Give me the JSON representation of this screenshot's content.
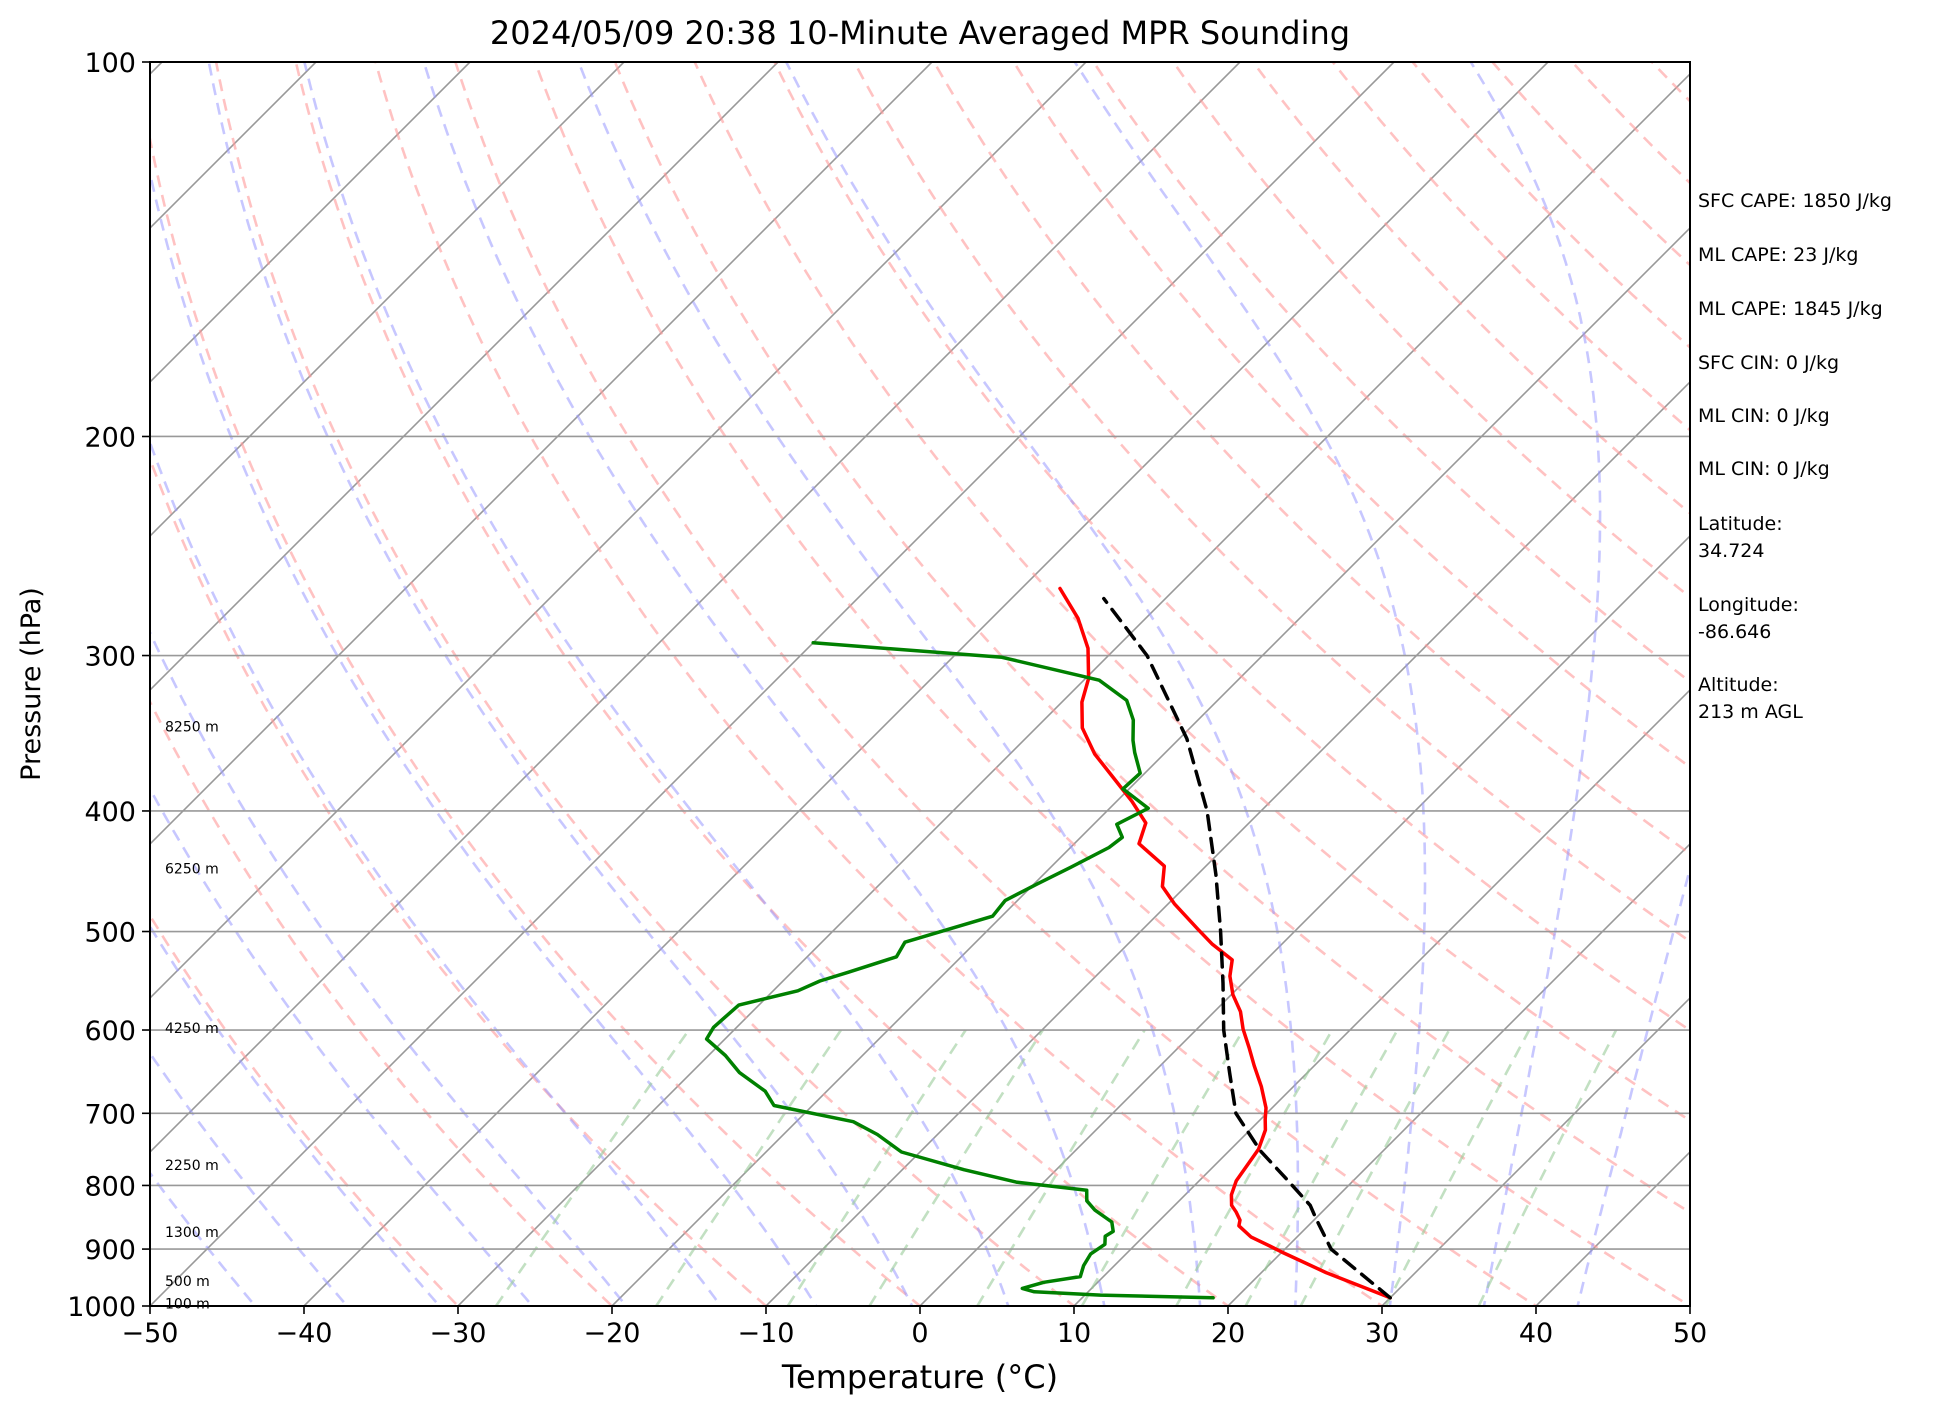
{
  "chart_data": {
    "type": "line",
    "subtype": "skew-t log-p sounding",
    "title": "2024/05/09 20:38 10-Minute Averaged MPR Sounding",
    "xlabel": "Temperature (°C)",
    "ylabel": "Pressure (hPa)",
    "xlim": [
      -50,
      50
    ],
    "ylim": [
      1000,
      100
    ],
    "y_scale": "log",
    "x_ticks": [
      "−50",
      "−40",
      "−30",
      "−20",
      "−10",
      "0",
      "10",
      "20",
      "30",
      "40",
      "50"
    ],
    "y_ticks": [
      "100",
      "200",
      "300",
      "400",
      "500",
      "600",
      "700",
      "800",
      "900",
      "1000"
    ],
    "grid": "horizontal at pressure ticks",
    "height_labels": [
      {
        "p": 342,
        "label": "8250 m"
      },
      {
        "p": 445,
        "label": "6250 m"
      },
      {
        "p": 598,
        "label": "4250 m"
      },
      {
        "p": 770,
        "label": "2250 m"
      },
      {
        "p": 872,
        "label": "1300 m"
      },
      {
        "p": 955,
        "label": "500 m"
      },
      {
        "p": 995,
        "label": "100 m"
      }
    ],
    "series": [
      {
        "role": "temperature",
        "color": "#ff0000",
        "points": [
          [
            30.0,
            985
          ],
          [
            24.2,
            940
          ],
          [
            20.0,
            905
          ],
          [
            18.6,
            893
          ],
          [
            17.0,
            880
          ],
          [
            15.5,
            862
          ],
          [
            15.2,
            853
          ],
          [
            14.4,
            840
          ],
          [
            13.7,
            830
          ],
          [
            13.0,
            814
          ],
          [
            12.4,
            793
          ],
          [
            11.8,
            748
          ],
          [
            11.0,
            722
          ],
          [
            10.3,
            708
          ],
          [
            9.6,
            693
          ],
          [
            7.9,
            666
          ],
          [
            6.1,
            641
          ],
          [
            4.6,
            620
          ],
          [
            3.0,
            599
          ],
          [
            1.7,
            580
          ],
          [
            0.1,
            562
          ],
          [
            -1.3,
            543
          ],
          [
            -2.2,
            527
          ],
          [
            -4.5,
            512
          ],
          [
            -6.4,
            498
          ],
          [
            -9.6,
            475
          ],
          [
            -11.5,
            460
          ],
          [
            -12.7,
            443
          ],
          [
            -15.8,
            425
          ],
          [
            -16.7,
            409
          ],
          [
            -19.0,
            393
          ],
          [
            -21.6,
            377
          ],
          [
            -24.5,
            360
          ],
          [
            -27.0,
            343
          ],
          [
            -28.7,
            327
          ],
          [
            -29.8,
            313
          ],
          [
            -31.8,
            296
          ],
          [
            -34.4,
            280
          ],
          [
            -37.5,
            265
          ]
        ]
      },
      {
        "role": "dewpoint",
        "color": "#008000",
        "points": [
          [
            18.5,
            985
          ],
          [
            11.0,
            980
          ],
          [
            6.5,
            974
          ],
          [
            5.5,
            968
          ],
          [
            6.5,
            957
          ],
          [
            8.5,
            947
          ],
          [
            8.0,
            928
          ],
          [
            7.7,
            908
          ],
          [
            8.0,
            892
          ],
          [
            7.5,
            879
          ],
          [
            7.7,
            871
          ],
          [
            7.0,
            856
          ],
          [
            5.1,
            837
          ],
          [
            4.0,
            823
          ],
          [
            3.3,
            807
          ],
          [
            -1.8,
            795
          ],
          [
            -6.0,
            777
          ],
          [
            -11.2,
            752
          ],
          [
            -13.9,
            728
          ],
          [
            -16.3,
            711
          ],
          [
            -22.5,
            690
          ],
          [
            -24.0,
            672
          ],
          [
            -26.9,
            649
          ],
          [
            -28.9,
            629
          ],
          [
            -31.2,
            610
          ],
          [
            -31.5,
            597
          ],
          [
            -31.4,
            584
          ],
          [
            -31.3,
            573
          ],
          [
            -28.4,
            558
          ],
          [
            -27.6,
            548
          ],
          [
            -26.3,
            539
          ],
          [
            -24.2,
            524
          ],
          [
            -24.6,
            510
          ],
          [
            -20.6,
            486
          ],
          [
            -20.8,
            472
          ],
          [
            -19.8,
            458
          ],
          [
            -18.7,
            444
          ],
          [
            -17.5,
            428
          ],
          [
            -17.3,
            420
          ],
          [
            -18.5,
            410
          ],
          [
            -17.5,
            398
          ],
          [
            -20.4,
            384
          ],
          [
            -20.3,
            373
          ],
          [
            -22.0,
            359
          ],
          [
            -22.9,
            351
          ],
          [
            -24.2,
            338
          ],
          [
            -25.9,
            326
          ],
          [
            -29.0,
            314
          ],
          [
            -36.8,
            301
          ],
          [
            -50.0,
            293
          ]
        ]
      },
      {
        "role": "parcel",
        "color": "#000000",
        "style": "dashed",
        "points": [
          [
            30.0,
            985
          ],
          [
            23.0,
            900
          ],
          [
            20.0,
            850
          ],
          [
            18.8,
            830
          ],
          [
            15.5,
            790
          ],
          [
            12.0,
            750
          ],
          [
            8.0,
            700
          ],
          [
            5.0,
            650
          ],
          [
            1.8,
            600
          ],
          [
            -1.3,
            550
          ],
          [
            -4.8,
            500
          ],
          [
            -8.8,
            450
          ],
          [
            -13.5,
            400
          ],
          [
            -19.5,
            350
          ],
          [
            -27.5,
            300
          ],
          [
            -34.0,
            270
          ]
        ]
      }
    ],
    "indices": [
      "SFC CAPE: 1850 J/kg",
      "ML CAPE: 23 J/kg",
      "ML CAPE: 1845 J/kg",
      "SFC CIN: 0 J/kg",
      "ML CIN: 0 J/kg",
      "ML CIN: 0 J/kg"
    ],
    "location": {
      "latitude_label": "Latitude:",
      "latitude": "34.724",
      "longitude_label": "Longitude:",
      "longitude": "-86.646",
      "altitude_label": "Altitude:",
      "altitude": "213 m AGL"
    },
    "colors": {
      "isotherm": "#999999",
      "dry_adiabat": "#ff9999",
      "moist_adiabat": "#9999ff",
      "mixing_ratio": "#99cc99",
      "grid": "#999999"
    }
  }
}
